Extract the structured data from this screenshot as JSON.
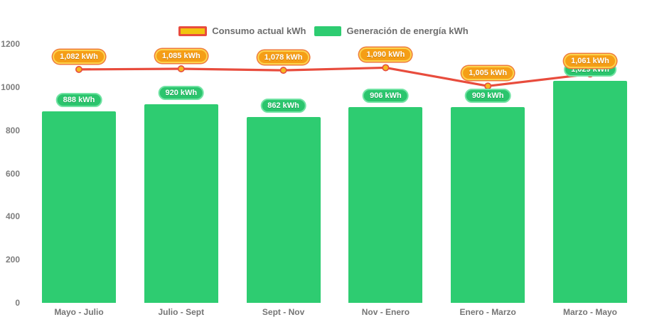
{
  "chart_data": {
    "type": "bar",
    "subtype": "bar-and-line-combo",
    "title": "",
    "xlabel": "",
    "ylabel": "",
    "ylim": [
      0,
      1200
    ],
    "yticks": [
      0,
      200,
      400,
      600,
      800,
      1000,
      1200
    ],
    "grid": false,
    "legend_position": "top-center",
    "categories": [
      "Mayo - Julio",
      "Julio - Sept",
      "Sept - Nov",
      "Nov - Enero",
      "Enero - Marzo",
      "Marzo - Mayo"
    ],
    "series": [
      {
        "name": "Consumo actual kWh",
        "type": "line",
        "values": [
          1082,
          1085,
          1078,
          1090,
          1005,
          1061
        ],
        "labels": [
          "1,082 kWh",
          "1,085 kWh",
          "1,078 kWh",
          "1,090 kWh",
          "1,005 kWh",
          "1,061 kWh"
        ],
        "color": "#e84c3d",
        "marker_color": "#f5b821"
      },
      {
        "name": "Generación de energía kWh",
        "type": "bar",
        "values": [
          888,
          920,
          862,
          906,
          909,
          1029
        ],
        "labels": [
          "888 kWh",
          "920 kWh",
          "862 kWh",
          "906 kWh",
          "909 kWh",
          "1,029 kWh"
        ],
        "color": "#2ecc71"
      }
    ]
  },
  "colors": {
    "bar_green": "#2ecc71",
    "line_red": "#e84c3d",
    "marker_orange": "#f5b821",
    "badge_line_fill": "#f59e16",
    "badge_line_border": "#fcd34d",
    "badge_bar_fill": "#2bc56d",
    "axis_text": "#7d7d7d",
    "background": "#ffffff"
  }
}
